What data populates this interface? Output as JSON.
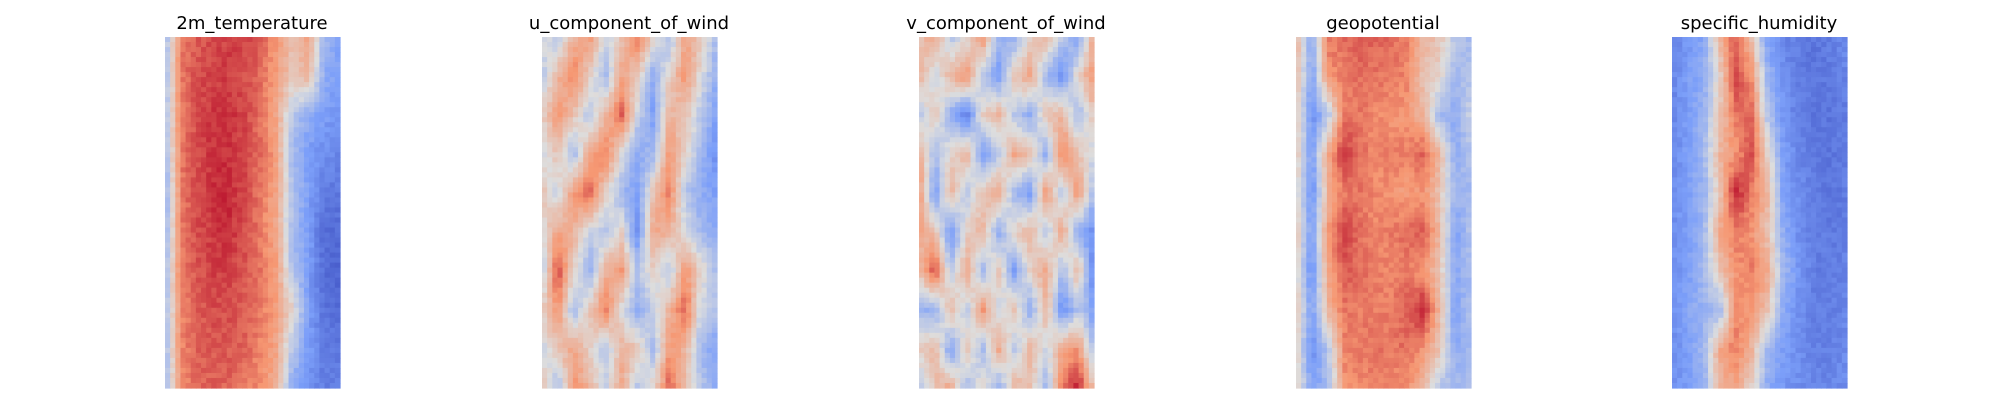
{
  "chart_data": [
    {
      "type": "heatmap",
      "title": "2m_temperature",
      "colormap": "coolwarm",
      "axes": "off",
      "grid": false,
      "legend": "none",
      "value_range": [
        -1,
        1
      ],
      "field": [
        [
          -0.3,
          0.6,
          0.7,
          0.75,
          0.8,
          0.78,
          0.7,
          0.5,
          0.2,
          0.4,
          -0.3,
          -0.5
        ],
        [
          -0.3,
          0.6,
          0.75,
          0.8,
          0.8,
          0.75,
          0.65,
          0.45,
          0.2,
          0.3,
          -0.4,
          -0.5
        ],
        [
          -0.3,
          0.6,
          0.75,
          0.82,
          0.85,
          0.78,
          0.62,
          0.4,
          -0.2,
          -0.4,
          -0.5,
          -0.55
        ],
        [
          -0.3,
          0.6,
          0.75,
          0.85,
          0.85,
          0.78,
          0.65,
          0.45,
          -0.3,
          -0.5,
          -0.6,
          -0.65
        ],
        [
          -0.4,
          0.6,
          0.75,
          0.85,
          0.88,
          0.78,
          0.6,
          0.4,
          -0.2,
          -0.5,
          -0.7,
          -0.75
        ],
        [
          -0.4,
          0.6,
          0.75,
          0.82,
          0.85,
          0.75,
          0.6,
          0.4,
          -0.3,
          -0.5,
          -0.8,
          -0.8
        ],
        [
          -0.3,
          0.6,
          0.72,
          0.8,
          0.8,
          0.72,
          0.62,
          0.45,
          -0.2,
          -0.5,
          -0.8,
          -0.85
        ],
        [
          -0.3,
          0.55,
          0.7,
          0.75,
          0.75,
          0.7,
          0.6,
          0.45,
          0.1,
          -0.5,
          -0.75,
          -0.8
        ],
        [
          -0.3,
          0.55,
          0.7,
          0.72,
          0.7,
          0.68,
          0.55,
          0.4,
          -0.2,
          -0.5,
          -0.7,
          -0.75
        ],
        [
          -0.3,
          0.5,
          0.65,
          0.68,
          0.68,
          0.6,
          0.55,
          0.35,
          -0.4,
          -0.6,
          -0.7,
          -0.7
        ]
      ]
    },
    {
      "type": "heatmap",
      "title": "u_component_of_wind",
      "colormap": "coolwarm",
      "axes": "off",
      "grid": false,
      "legend": "none",
      "value_range": [
        -1,
        1
      ],
      "field": [
        [
          0.0,
          -0.2,
          0.3,
          0.5,
          -0.1,
          0.2,
          0.6,
          0.1,
          -0.3,
          0.4,
          0.2,
          -0.3
        ],
        [
          -0.2,
          0.3,
          0.6,
          0.1,
          -0.3,
          0.4,
          0.2,
          -0.4,
          0.1,
          0.5,
          0.0,
          -0.4
        ],
        [
          0.1,
          0.5,
          0.2,
          -0.2,
          0.3,
          0.7,
          -0.1,
          -0.5,
          0.3,
          0.2,
          -0.2,
          -0.5
        ],
        [
          -0.1,
          0.2,
          -0.3,
          0.4,
          0.6,
          0.0,
          -0.4,
          -0.3,
          0.5,
          0.1,
          -0.3,
          -0.6
        ],
        [
          0.2,
          -0.1,
          0.5,
          0.7,
          0.1,
          -0.3,
          -0.5,
          0.2,
          0.6,
          -0.2,
          -0.4,
          -0.5
        ],
        [
          0.0,
          0.4,
          0.3,
          -0.1,
          -0.2,
          0.1,
          -0.6,
          0.4,
          0.3,
          0.0,
          -0.3,
          -0.4
        ],
        [
          -0.2,
          0.8,
          0.1,
          -0.4,
          0.3,
          0.5,
          -0.2,
          0.1,
          -0.2,
          0.5,
          0.1,
          -0.3
        ],
        [
          0.1,
          0.5,
          -0.3,
          0.2,
          0.6,
          0.0,
          -0.4,
          -0.1,
          0.3,
          0.7,
          -0.1,
          -0.2
        ],
        [
          -0.1,
          0.2,
          0.4,
          0.1,
          -0.2,
          0.3,
          0.2,
          -0.3,
          0.5,
          0.3,
          -0.3,
          -0.5
        ],
        [
          0.2,
          -0.3,
          0.5,
          0.3,
          -0.1,
          0.4,
          -0.2,
          0.1,
          0.7,
          0.2,
          -0.2,
          -0.4
        ]
      ]
    },
    {
      "type": "heatmap",
      "title": "v_component_of_wind",
      "colormap": "coolwarm",
      "axes": "off",
      "grid": false,
      "legend": "none",
      "value_range": [
        -1,
        1
      ],
      "field": [
        [
          0.2,
          0.4,
          -0.2,
          0.0,
          0.5,
          -0.3,
          -0.4,
          0.1,
          0.3,
          -0.2,
          -0.5,
          0.4
        ],
        [
          0.3,
          -0.1,
          0.3,
          0.5,
          -0.2,
          -0.5,
          0.2,
          0.4,
          -0.3,
          -0.6,
          0.1,
          0.5
        ],
        [
          -0.2,
          0.2,
          -0.4,
          -0.7,
          0.1,
          0.3,
          -0.2,
          -0.4,
          0.2,
          0.3,
          -0.3,
          0.2
        ],
        [
          0.4,
          -0.3,
          0.1,
          0.3,
          -0.5,
          -0.2,
          0.4,
          0.2,
          -0.4,
          0.6,
          0.2,
          -0.1
        ],
        [
          0.5,
          -0.5,
          0.3,
          -0.2,
          0.2,
          0.4,
          -0.3,
          -0.5,
          0.5,
          -0.2,
          0.5,
          -0.3
        ],
        [
          0.4,
          0.2,
          -0.6,
          0.1,
          0.3,
          -0.4,
          0.1,
          0.3,
          -0.2,
          0.4,
          -0.4,
          -0.6
        ],
        [
          0.2,
          0.8,
          -0.2,
          0.4,
          -0.3,
          0.2,
          -0.5,
          0.1,
          0.4,
          -0.3,
          0.3,
          -0.7
        ],
        [
          -0.3,
          -0.4,
          0.3,
          -0.2,
          0.5,
          -0.1,
          0.2,
          -0.4,
          0.3,
          -0.6,
          -0.2,
          -0.5
        ],
        [
          0.1,
          0.3,
          -0.5,
          0.2,
          -0.3,
          0.4,
          -0.2,
          0.3,
          -0.1,
          0.4,
          0.5,
          -0.3
        ],
        [
          -0.2,
          0.2,
          0.4,
          -0.3,
          0.1,
          -0.4,
          0.3,
          0.2,
          -0.3,
          0.6,
          0.9,
          0.2
        ]
      ]
    },
    {
      "type": "heatmap",
      "title": "geopotential",
      "colormap": "coolwarm",
      "axes": "off",
      "grid": false,
      "legend": "none",
      "value_range": [
        -1,
        1
      ],
      "field": [
        [
          0.3,
          -0.4,
          0.6,
          0.65,
          0.7,
          0.68,
          0.65,
          0.6,
          0.3,
          0.2,
          -0.2,
          -0.3
        ],
        [
          0.3,
          -0.5,
          0.5,
          0.6,
          0.65,
          0.62,
          0.6,
          0.55,
          0.2,
          0.1,
          -0.3,
          -0.2
        ],
        [
          0.2,
          -0.6,
          -0.2,
          0.6,
          0.6,
          0.55,
          0.5,
          0.5,
          0.3,
          -0.3,
          -0.4,
          -0.1
        ],
        [
          0.2,
          -0.5,
          0.4,
          0.85,
          0.65,
          0.55,
          0.6,
          0.6,
          0.7,
          0.3,
          -0.4,
          -0.2
        ],
        [
          0.1,
          -0.6,
          0.3,
          0.6,
          0.62,
          0.55,
          0.5,
          0.45,
          0.5,
          0.2,
          -0.3,
          -0.3
        ],
        [
          0.2,
          -0.5,
          0.5,
          0.8,
          0.65,
          0.55,
          0.6,
          0.65,
          0.7,
          0.3,
          -0.5,
          -0.2
        ],
        [
          0.1,
          -0.6,
          0.4,
          0.7,
          0.65,
          0.6,
          0.55,
          0.6,
          0.5,
          0.2,
          -0.4,
          -0.3
        ],
        [
          0.2,
          -0.5,
          0.3,
          0.6,
          0.6,
          0.58,
          0.6,
          0.7,
          0.88,
          0.3,
          -0.5,
          -0.2
        ],
        [
          0.1,
          -0.6,
          -0.2,
          0.55,
          0.6,
          0.62,
          0.6,
          0.65,
          0.5,
          0.2,
          -0.4,
          -0.3
        ],
        [
          0.2,
          -0.5,
          -0.3,
          0.5,
          0.55,
          0.58,
          0.55,
          0.5,
          0.3,
          -0.2,
          -0.3,
          -0.2
        ]
      ]
    },
    {
      "type": "heatmap",
      "title": "specific_humidity",
      "colormap": "coolwarm",
      "axes": "off",
      "grid": false,
      "legend": "none",
      "value_range": [
        -1,
        1
      ],
      "field": [
        [
          -0.65,
          -0.55,
          -0.45,
          0.3,
          0.7,
          0.2,
          -0.5,
          -0.65,
          -0.7,
          -0.75,
          -0.7,
          -0.6
        ],
        [
          -0.65,
          -0.5,
          -0.4,
          0.1,
          0.8,
          0.5,
          -0.3,
          -0.6,
          -0.7,
          -0.75,
          -0.72,
          -0.65
        ],
        [
          -0.65,
          -0.5,
          -0.35,
          0.2,
          0.6,
          0.7,
          -0.2,
          -0.55,
          -0.7,
          -0.75,
          -0.75,
          -0.7
        ],
        [
          -0.65,
          -0.5,
          -0.3,
          0.3,
          0.5,
          0.75,
          0.1,
          -0.5,
          -0.65,
          -0.75,
          -0.75,
          -0.7
        ],
        [
          -0.6,
          -0.5,
          -0.35,
          0.2,
          0.9,
          0.6,
          0.3,
          -0.5,
          -0.6,
          -0.7,
          -0.75,
          -0.7
        ],
        [
          -0.6,
          -0.5,
          -0.3,
          0.4,
          0.6,
          0.5,
          0.2,
          -0.4,
          -0.6,
          -0.7,
          -0.72,
          -0.7
        ],
        [
          -0.6,
          -0.5,
          -0.3,
          0.2,
          0.5,
          0.6,
          0.4,
          -0.3,
          -0.55,
          -0.7,
          -0.7,
          -0.65
        ],
        [
          -0.6,
          -0.45,
          -0.35,
          -0.3,
          0.55,
          0.5,
          0.2,
          -0.4,
          -0.6,
          -0.7,
          -0.7,
          -0.65
        ],
        [
          -0.6,
          -0.5,
          -0.3,
          0.4,
          0.6,
          0.3,
          -0.3,
          -0.5,
          -0.6,
          -0.68,
          -0.68,
          -0.6
        ],
        [
          -0.6,
          -0.5,
          -0.4,
          0.3,
          0.4,
          0.1,
          -0.4,
          -0.55,
          -0.6,
          -0.65,
          -0.65,
          -0.6
        ]
      ]
    }
  ]
}
